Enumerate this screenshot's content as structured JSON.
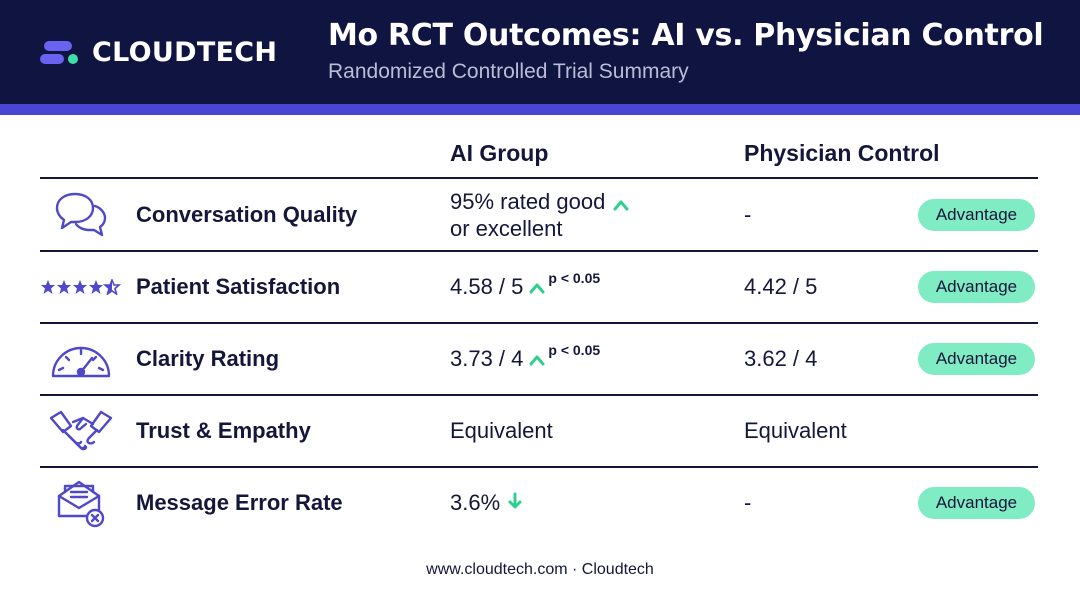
{
  "header": {
    "logo_text": "CLOUDTECH",
    "title": "Mo RCT Outcomes: AI vs. Physician Control",
    "subtitle": "Randomized Controlled Trial Summary"
  },
  "table": {
    "columns": {
      "ai": "AI Group",
      "physician": "Physician Control"
    },
    "rows": [
      {
        "icon": "chat-bubbles-icon",
        "label": "Conversation Quality",
        "ai_line1": "95% rated good",
        "ai_line2": "or excellent",
        "ai_trend": "up",
        "ai_p": "",
        "physician": "-",
        "badge": "Advantage"
      },
      {
        "icon": "stars-rating-icon",
        "label": "Patient Satisfaction",
        "ai": "4.58 / 5",
        "ai_trend": "up",
        "ai_p": "p < 0.05",
        "physician": "4.42 / 5",
        "badge": "Advantage"
      },
      {
        "icon": "gauge-icon",
        "label": "Clarity Rating",
        "ai": "3.73 / 4",
        "ai_trend": "up",
        "ai_p": "p < 0.05",
        "physician": "3.62 / 4",
        "badge": "Advantage"
      },
      {
        "icon": "handshake-icon",
        "label": "Trust & Empathy",
        "ai": "Equivalent",
        "ai_trend": "",
        "ai_p": "",
        "physician": "Equivalent",
        "badge": ""
      },
      {
        "icon": "envelope-error-icon",
        "label": "Message Error Rate",
        "ai": "3.6%",
        "ai_trend": "down",
        "ai_p": "",
        "physician": "-",
        "badge": "Advantage"
      }
    ]
  },
  "footer": {
    "text": "www.cloudtech.com · Cloudtech"
  },
  "colors": {
    "navy": "#0f1440",
    "accent": "#4b45d6",
    "icon": "#4f49c9",
    "trend": "#2fd08f",
    "badge": "#7fecc4"
  }
}
